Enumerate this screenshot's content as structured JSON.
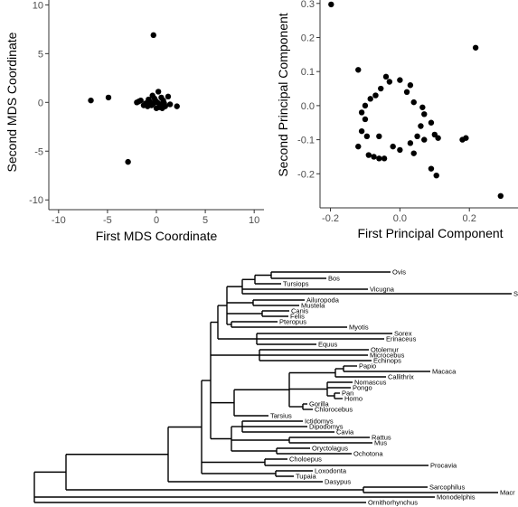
{
  "chart_data": [
    {
      "type": "scatter",
      "xlabel": "First MDS Coordinate",
      "ylabel": "Second MDS Coordinate",
      "xlim": [
        -11,
        11
      ],
      "ylim": [
        -11,
        10.5
      ],
      "xticks": [
        "-10",
        "-5",
        "0",
        "5",
        "10"
      ],
      "yticks": [
        "10",
        "5",
        "0",
        "-5",
        "-10"
      ],
      "grid": false,
      "points": [
        [
          -0.3,
          6.9
        ],
        [
          -6.7,
          0.2
        ],
        [
          -4.9,
          0.5
        ],
        [
          -2.9,
          -6.1
        ],
        [
          1.2,
          0.6
        ],
        [
          2.1,
          -0.4
        ],
        [
          0.2,
          1.1
        ],
        [
          -2.0,
          0.0
        ],
        [
          -1.6,
          0.2
        ],
        [
          -1.1,
          -0.1
        ],
        [
          -0.8,
          0.3
        ],
        [
          -0.5,
          -0.3
        ],
        [
          -0.2,
          0.4
        ],
        [
          0.1,
          0.0
        ],
        [
          0.4,
          -0.2
        ],
        [
          0.7,
          0.2
        ],
        [
          0.9,
          -0.4
        ],
        [
          -0.4,
          0.7
        ],
        [
          0.0,
          -0.6
        ],
        [
          -1.3,
          -0.3
        ],
        [
          0.5,
          0.5
        ],
        [
          -0.7,
          0.1
        ],
        [
          0.3,
          -0.5
        ],
        [
          -0.1,
          0.2
        ],
        [
          0.8,
          -0.1
        ],
        [
          -0.9,
          -0.4
        ],
        [
          0.6,
          -0.6
        ],
        [
          -0.3,
          -0.1
        ],
        [
          1.4,
          -0.2
        ],
        [
          -1.8,
          0.1
        ]
      ]
    },
    {
      "type": "scatter",
      "xlabel": "First Principal Component",
      "ylabel": "Second Principal Component",
      "xlim": [
        -0.23,
        0.34
      ],
      "ylim": [
        -0.3,
        0.31
      ],
      "xticks": [
        "-0.2",
        "0.0",
        "0.2"
      ],
      "yticks": [
        "0.3",
        "0.2",
        "0.1",
        "0.0",
        "-0.1",
        "-0.2"
      ],
      "grid": false,
      "points": [
        [
          -0.198,
          0.297
        ],
        [
          0.218,
          0.17
        ],
        [
          -0.12,
          0.105
        ],
        [
          0.29,
          -0.265
        ],
        [
          0.18,
          -0.1
        ],
        [
          0.19,
          -0.095
        ],
        [
          0.09,
          -0.185
        ],
        [
          0.105,
          -0.205
        ],
        [
          -0.09,
          -0.145
        ],
        [
          -0.075,
          -0.15
        ],
        [
          -0.06,
          -0.155
        ],
        [
          -0.045,
          -0.155
        ],
        [
          -0.12,
          -0.12
        ],
        [
          -0.11,
          -0.075
        ],
        [
          -0.1,
          -0.04
        ],
        [
          -0.095,
          -0.09
        ],
        [
          0.05,
          -0.09
        ],
        [
          0.07,
          -0.1
        ],
        [
          0.1,
          -0.085
        ],
        [
          0.11,
          -0.095
        ],
        [
          0.09,
          -0.05
        ],
        [
          0.06,
          -0.06
        ],
        [
          -0.02,
          -0.12
        ],
        [
          0.0,
          -0.13
        ],
        [
          -0.085,
          0.02
        ],
        [
          -0.07,
          0.03
        ],
        [
          -0.03,
          0.07
        ],
        [
          0.0,
          0.075
        ],
        [
          -0.04,
          0.085
        ],
        [
          0.03,
          0.06
        ],
        [
          -0.055,
          0.05
        ],
        [
          0.02,
          0.04
        ],
        [
          -0.1,
          0.0
        ],
        [
          -0.11,
          -0.02
        ],
        [
          0.07,
          -0.025
        ],
        [
          0.065,
          -0.005
        ],
        [
          0.04,
          0.01
        ],
        [
          -0.06,
          -0.09
        ],
        [
          0.03,
          -0.11
        ],
        [
          0.04,
          -0.14
        ]
      ]
    },
    {
      "type": "tree",
      "leaves": [
        "Ovis",
        "Bos",
        "Tursiops",
        "Vicugna",
        "Su",
        "Ailuropoda",
        "Mustela",
        "Canis",
        "Felis",
        "Pteropus",
        "Myotis",
        "Sorex",
        "Erinaceus",
        "Equus",
        "Otolemur",
        "Microcebus",
        "Echinops",
        "Papio",
        "Macaca",
        "Callithrix",
        "Nomascus",
        "Pongo",
        "Pan",
        "Homo",
        "Gorilla",
        "Chlorocebus",
        "Tarsius",
        "Ictidomys",
        "Dipodomys",
        "Cavia",
        "Rattus",
        "Mus",
        "Oryctolagus",
        "Ochotona",
        "Choloepus",
        "Procavia",
        "Loxodonta",
        "Tupaia",
        "Dasypus",
        "Sarcophilus",
        "Macr",
        "Monodelphis",
        "Ornithorhynchus"
      ]
    }
  ]
}
